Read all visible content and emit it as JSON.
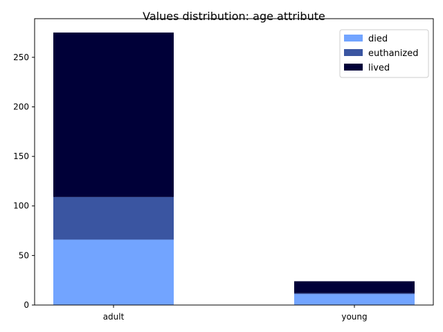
{
  "chart_data": {
    "type": "bar",
    "stacked": true,
    "title": "Values distribution: age attribute",
    "xlabel": "",
    "ylabel": "",
    "categories": [
      "adult",
      "young"
    ],
    "series": [
      {
        "name": "died",
        "values": [
          66,
          11
        ],
        "color": "#72a4ff"
      },
      {
        "name": "euthanized",
        "values": [
          43,
          1
        ],
        "color": "#3a55a1"
      },
      {
        "name": "lived",
        "values": [
          166,
          12
        ],
        "color": "#000038"
      }
    ],
    "ylim": [
      0,
      289
    ],
    "yticks": [
      0,
      50,
      100,
      150,
      200,
      250
    ],
    "grid": false,
    "legend_position": "top-right"
  }
}
